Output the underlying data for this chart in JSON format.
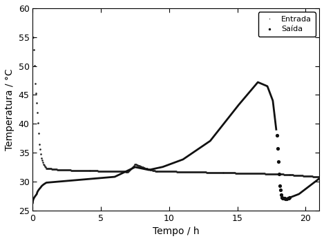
{
  "title": "",
  "xlabel": "Tempo / h",
  "ylabel": "Temperatura / °C",
  "xlim": [
    0,
    21
  ],
  "ylim": [
    25,
    60
  ],
  "xticks": [
    0,
    5,
    10,
    15,
    20
  ],
  "yticks": [
    25,
    30,
    35,
    40,
    45,
    50,
    55,
    60
  ],
  "legend_entrada": "Entrada",
  "legend_saida": "Saída",
  "entrada_color": "#222222",
  "saida_color": "#111111",
  "background_color": "#ffffff"
}
